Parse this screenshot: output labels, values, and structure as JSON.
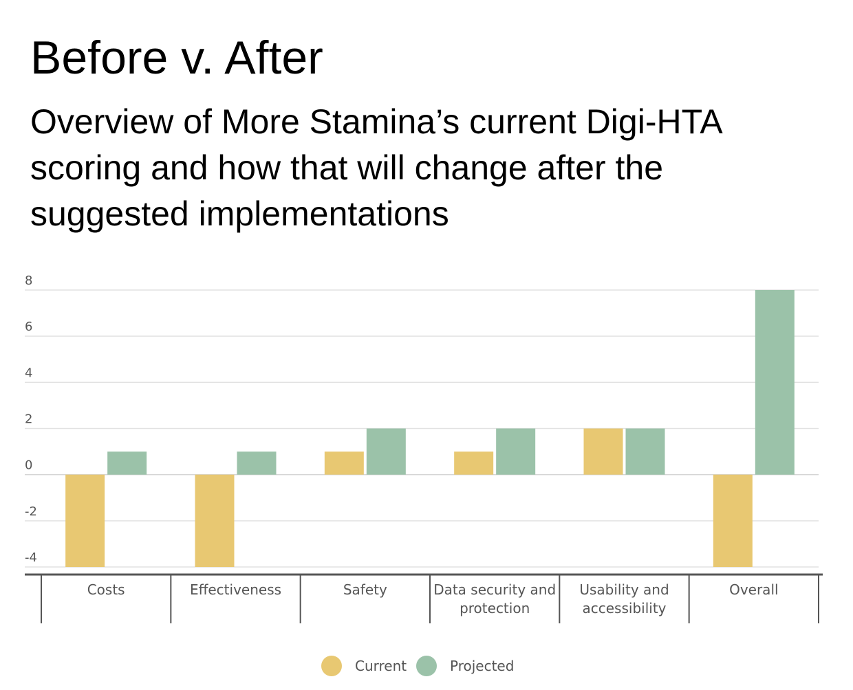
{
  "slide": {
    "title": "Before v. After",
    "subtitle": "Overview of More Stamina’s current Digi-HTA scoring and how that will change after the suggested implementations"
  },
  "chart_data": {
    "type": "bar",
    "categories": [
      [
        "Costs"
      ],
      [
        "Effectiveness"
      ],
      [
        "Safety"
      ],
      [
        "Data security and",
        "protection"
      ],
      [
        "Usability and",
        "accessibility"
      ],
      [
        "Overall"
      ]
    ],
    "series": [
      {
        "name": "Current",
        "color": "#E8C872",
        "values": [
          -4,
          -4,
          1,
          1,
          2,
          -4
        ]
      },
      {
        "name": "Projected",
        "color": "#9BC2A9",
        "values": [
          1,
          1,
          2,
          2,
          2,
          8
        ]
      }
    ],
    "yticks": [
      8,
      6,
      4,
      2,
      0,
      -2,
      -4
    ],
    "ylim": [
      -4,
      8
    ],
    "grid": true,
    "legend_position": "bottom-center"
  }
}
